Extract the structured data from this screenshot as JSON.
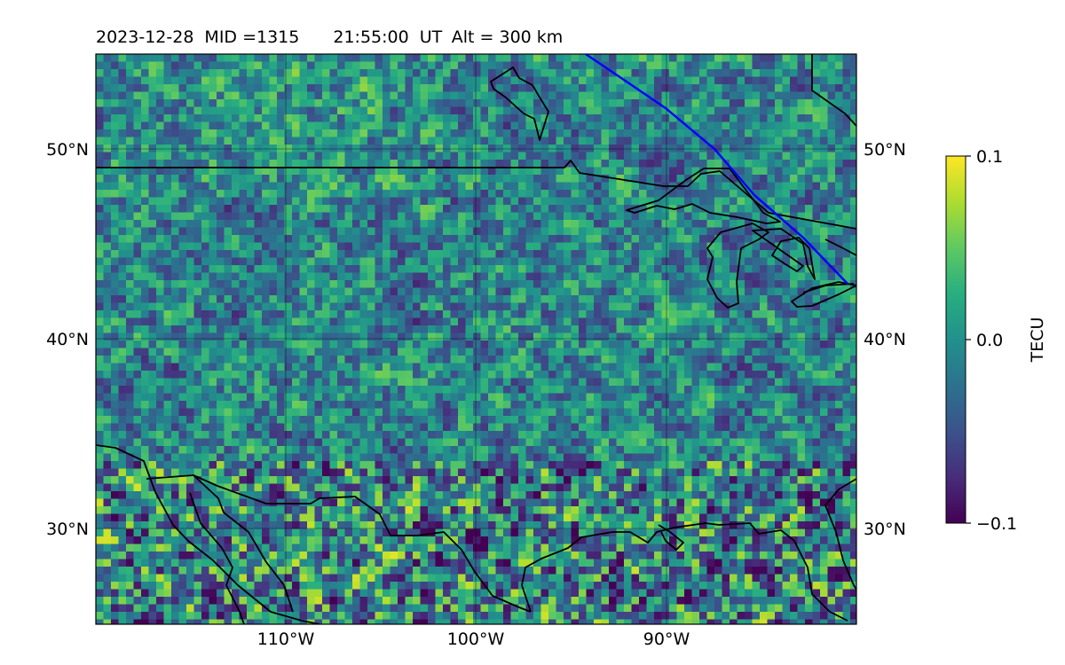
{
  "header": {
    "date": "2023-12-28",
    "mid": "MID =1315",
    "time": "21:55:00",
    "ut": "UT",
    "alt": "Alt = 300 km"
  },
  "map": {
    "lat_labels_left": [
      "50°N",
      "40°N",
      "30°N"
    ],
    "lat_labels_right": [
      "50°N",
      "40°N",
      "30°N"
    ],
    "lon_labels": [
      "110°W",
      "100°W",
      "90°W"
    ],
    "lon_range": [
      -120,
      -80
    ],
    "lat_range": [
      25,
      55
    ],
    "colormap": "viridis",
    "terminator_color": "#0000ff",
    "coastline_color": "#000000",
    "grid_color": "#000000"
  },
  "colorbar": {
    "label": "TECU",
    "ticks": [
      "0.1",
      "0.0",
      "−0.1"
    ],
    "vmin": -0.1,
    "vmax": 0.1
  },
  "chart_data": {
    "type": "heatmap",
    "xlabel": "",
    "ylabel": "",
    "x_ticks": [
      "110°W",
      "100°W",
      "90°W"
    ],
    "y_ticks": [
      "50°N",
      "40°N",
      "30°N"
    ],
    "grid": true,
    "legend": "right",
    "cbar_label": "TECU",
    "cbar_range": [
      -0.1,
      0.1
    ]
  }
}
